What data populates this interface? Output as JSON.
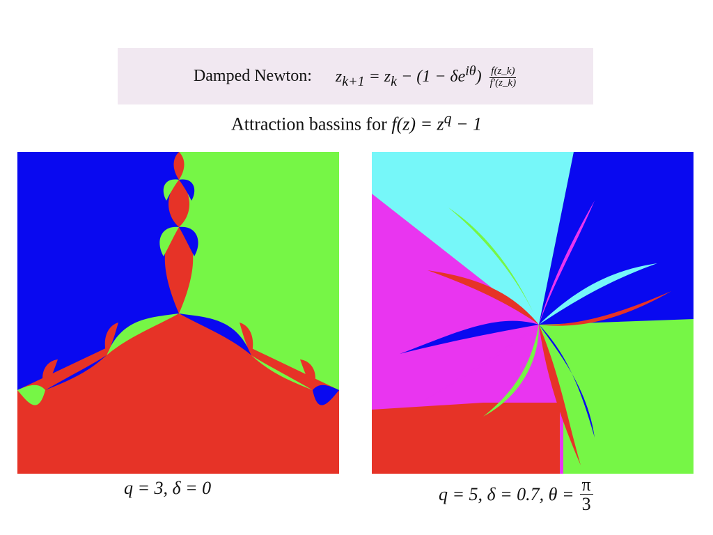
{
  "formula": {
    "label": "Damped Newton:",
    "lhs": "z",
    "lhs_sub": "k+1",
    "rhs": "= z",
    "rhs_sub": "k",
    "damp": " − (1 − δe",
    "damp_sup": "iθ",
    "damp_close": ")",
    "frac_num": "f(z_k)",
    "frac_den": "f′(z_k)"
  },
  "subtitle": {
    "text": "Attraction bassins for ",
    "math": "f(z) = z",
    "sup": "q",
    "tail": " − 1"
  },
  "panels": {
    "left": {
      "caption": "q = 3, δ = 0"
    },
    "right": {
      "caption_main": "q = 5, δ = 0.7, θ =",
      "pi_num": "π",
      "pi_den": "3"
    }
  },
  "colors": {
    "red": "#e63327",
    "green": "#76f646",
    "blue": "#0909f0",
    "cyan": "#76f7f9",
    "magenta": "#e935f0",
    "box": "#f1e8f1"
  }
}
